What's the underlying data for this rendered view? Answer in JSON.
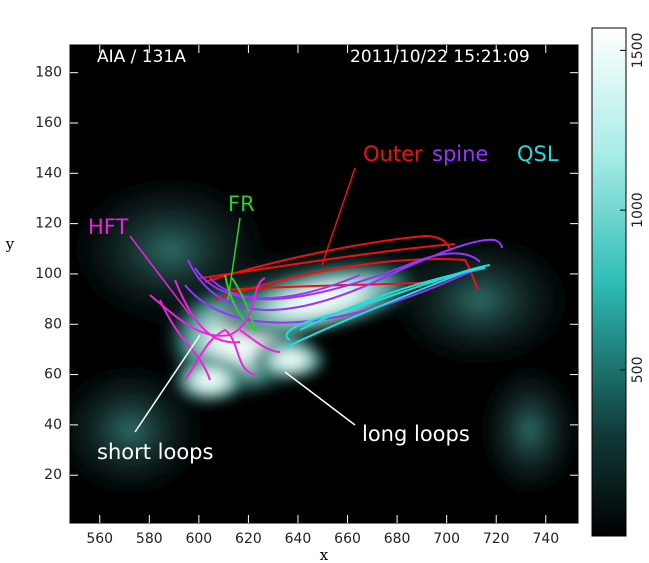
{
  "chart_data": {
    "type": "image",
    "title_left": "AIA / 131A",
    "title_right": "2011/10/22 15:21:09",
    "xlabel": "x",
    "ylabel": "y",
    "xlim": [
      548,
      753
    ],
    "ylim": [
      1,
      191
    ],
    "xticks": [
      560,
      580,
      600,
      620,
      640,
      660,
      680,
      700,
      720,
      740
    ],
    "yticks": [
      20,
      40,
      60,
      80,
      100,
      120,
      140,
      160,
      180
    ],
    "clim": [
      -20,
      1570
    ],
    "cticks": [
      500,
      1000,
      1500
    ],
    "annotations": {
      "outer": "Outer",
      "spine": "spine",
      "qsl": "QSL",
      "fr": "FR",
      "hft": "HFT",
      "short_loops": "short loops",
      "long_loops": "long loops"
    }
  }
}
